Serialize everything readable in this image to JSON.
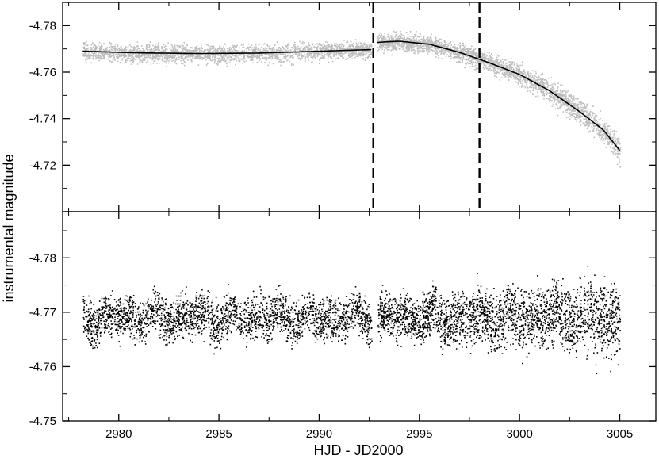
{
  "chart_data": [
    {
      "panel": "top",
      "type": "scatter",
      "title": "",
      "xlabel": "HJD - JD2000",
      "ylabel": "instrumental magnitude",
      "xlim": [
        2977.2,
        3006.8
      ],
      "ylim": [
        -4.79,
        -4.7
      ],
      "y_inverted": true,
      "x_ticks": [
        2980,
        2985,
        2990,
        2995,
        3000,
        3005
      ],
      "x_tick_labels": [
        "2980",
        "2985",
        "2990",
        "2995",
        "3000",
        "3005"
      ],
      "y_ticks": [
        -4.78,
        -4.76,
        -4.74,
        -4.72
      ],
      "y_tick_labels": [
        "-4.78",
        "-4.76",
        "-4.74",
        "-4.72"
      ],
      "point_color": "#bdbdbd",
      "segments": [
        {
          "x_start": 2978.2,
          "x_end": 2992.6
        },
        {
          "x_start": 2992.9,
          "x_end": 3005.0
        }
      ],
      "fit_curves": [
        {
          "x": [
            2978.2,
            2981,
            2984,
            2987,
            2990,
            2992.6
          ],
          "y": [
            -4.769,
            -4.7683,
            -4.768,
            -4.7682,
            -4.769,
            -4.7697
          ]
        },
        {
          "x": [
            2992.9,
            2994,
            2995.5,
            2997,
            2998.5,
            3000,
            3001.5,
            3003,
            3004.2,
            3005.0
          ],
          "y": [
            -4.7728,
            -4.7733,
            -4.772,
            -4.7685,
            -4.764,
            -4.759,
            -4.752,
            -4.743,
            -4.735,
            -4.7263
          ]
        }
      ],
      "vertical_markers": [
        2992.7,
        2998.0
      ],
      "grid": false,
      "legend": "none"
    },
    {
      "panel": "bottom",
      "type": "scatter",
      "title": "",
      "xlabel": "HJD - JD2000",
      "ylabel": "instrumental magnitude",
      "xlim": [
        2977.2,
        3006.8
      ],
      "ylim": [
        -4.7885,
        -4.75
      ],
      "y_inverted": true,
      "x_ticks": [
        2980,
        2985,
        2990,
        2995,
        3000,
        3005
      ],
      "x_tick_labels": [
        "2980",
        "2985",
        "2990",
        "2995",
        "3000",
        "3005"
      ],
      "y_ticks": [
        -4.78,
        -4.77,
        -4.76,
        -4.75
      ],
      "y_tick_labels": [
        "-4.78",
        "-4.77",
        "-4.76",
        "-4.75"
      ],
      "point_color": "#000000",
      "segments": [
        {
          "x_start": 2978.2,
          "x_end": 2992.6
        },
        {
          "x_start": 2992.9,
          "x_end": 3005.0
        }
      ],
      "mean_level": -4.769,
      "grid": false,
      "legend": "none"
    }
  ]
}
